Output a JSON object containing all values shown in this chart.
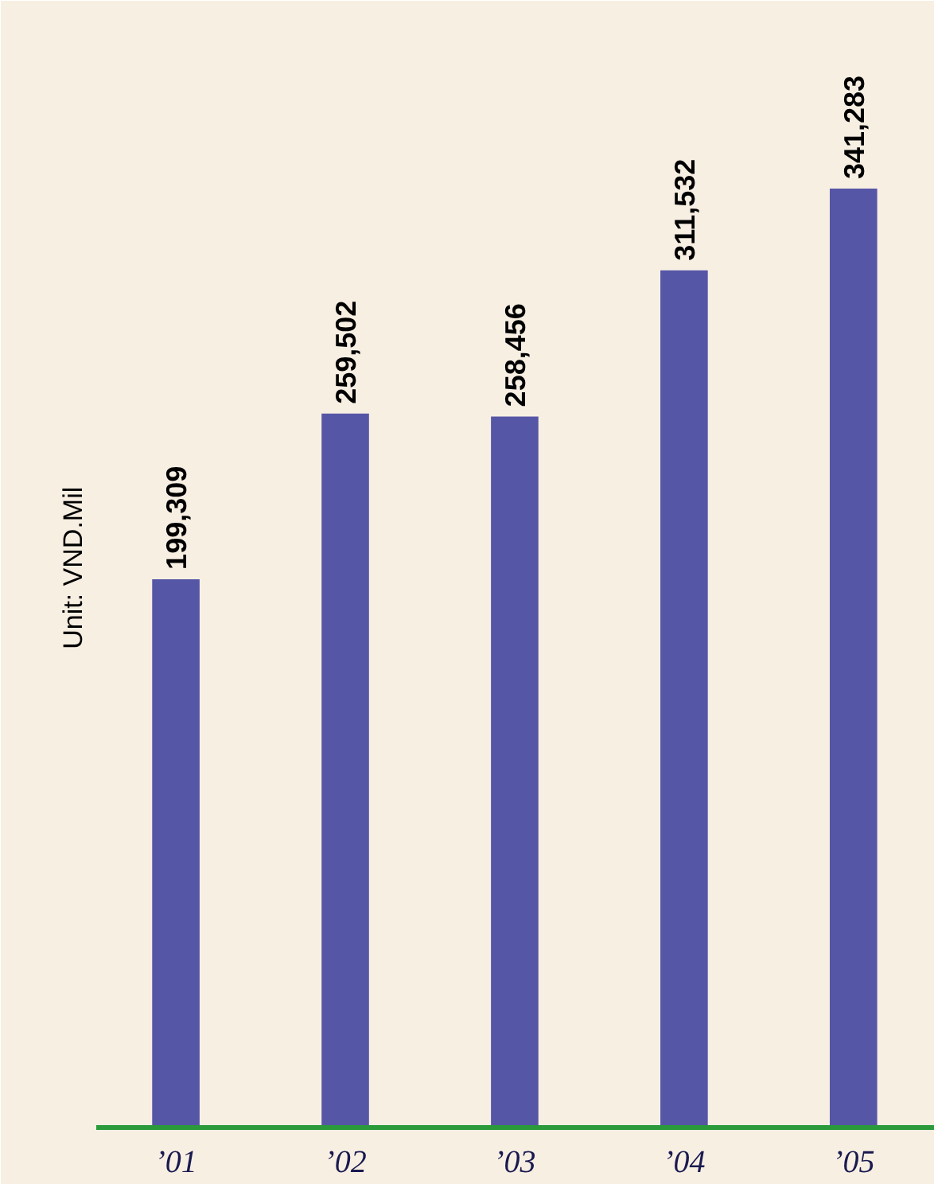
{
  "chart_data": {
    "type": "bar",
    "ylabel": "Unit:  VND.Mil",
    "categories": [
      "’01",
      "’02",
      "’03",
      "’04",
      "’05"
    ],
    "values": [
      199309,
      259502,
      258456,
      311532,
      341283
    ],
    "color": "#5656a6",
    "value_labels": [
      "199,309",
      "259,502",
      "258,456",
      "311,532",
      "341,283"
    ],
    "grid": false
  }
}
